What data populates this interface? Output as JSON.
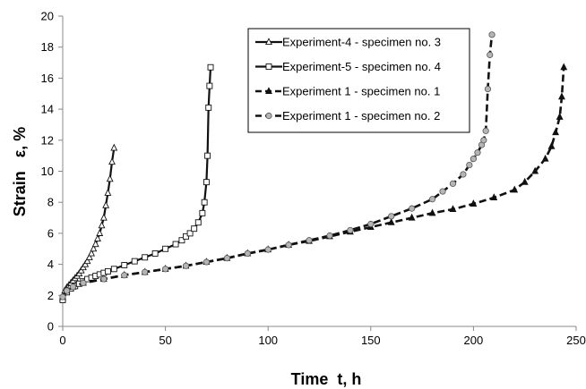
{
  "chart_data": {
    "type": "line",
    "title": "",
    "xlabel": "Time  t, h",
    "ylabel": "Strain   ε, %",
    "xlim": [
      0,
      250
    ],
    "ylim": [
      0,
      20
    ],
    "xticks": [
      0,
      50,
      100,
      150,
      200,
      250
    ],
    "yticks": [
      0,
      2,
      4,
      6,
      8,
      10,
      12,
      14,
      16,
      18,
      20
    ],
    "grid": false,
    "legend_position": "top-right",
    "series": [
      {
        "name": "Experiment-4 - specimen no. 3",
        "line_style": "solid",
        "marker": "triangle-open",
        "x": [
          0,
          1,
          2,
          3,
          4,
          5,
          6,
          7,
          8,
          9,
          10,
          11,
          12,
          13,
          14,
          15,
          16,
          17,
          18,
          19,
          20,
          21,
          22,
          23,
          24,
          25
        ],
        "y": [
          1.8,
          2.3,
          2.5,
          2.65,
          2.8,
          2.95,
          3.1,
          3.25,
          3.4,
          3.6,
          3.8,
          4.0,
          4.2,
          4.45,
          4.7,
          5.0,
          5.3,
          5.65,
          6.0,
          6.5,
          7.0,
          7.8,
          8.6,
          9.5,
          10.6,
          11.5
        ]
      },
      {
        "name": "Experiment-5 - specimen no. 4",
        "line_style": "solid",
        "marker": "square-open",
        "x": [
          0,
          2,
          4,
          6,
          8,
          10,
          12,
          14,
          16,
          18,
          20,
          22,
          25,
          30,
          35,
          40,
          45,
          50,
          55,
          58,
          60,
          62,
          64,
          66,
          68,
          69,
          70,
          70.5,
          71,
          71.5,
          72
        ],
        "y": [
          1.7,
          2.2,
          2.45,
          2.6,
          2.75,
          2.9,
          3.05,
          3.15,
          3.25,
          3.35,
          3.45,
          3.55,
          3.7,
          3.95,
          4.2,
          4.45,
          4.7,
          5.0,
          5.3,
          5.55,
          5.8,
          6.0,
          6.3,
          6.7,
          7.3,
          8.0,
          9.3,
          11.0,
          14.1,
          15.5,
          16.7
        ]
      },
      {
        "name": "Experiment 1 - specimen no. 1",
        "line_style": "dashed",
        "marker": "triangle-filled",
        "x": [
          0,
          2,
          5,
          10,
          20,
          30,
          40,
          50,
          60,
          70,
          80,
          90,
          100,
          110,
          120,
          130,
          140,
          150,
          160,
          170,
          180,
          190,
          200,
          210,
          220,
          225,
          230,
          235,
          238,
          240,
          242,
          243,
          244
        ],
        "y": [
          1.9,
          2.3,
          2.55,
          2.8,
          3.05,
          3.3,
          3.5,
          3.7,
          3.9,
          4.15,
          4.4,
          4.7,
          4.95,
          5.25,
          5.5,
          5.8,
          6.1,
          6.4,
          6.7,
          7.0,
          7.3,
          7.55,
          7.9,
          8.3,
          8.8,
          9.3,
          10.0,
          10.8,
          11.6,
          12.5,
          13.5,
          14.8,
          16.7
        ]
      },
      {
        "name": "Experiment 1 - specimen no. 2",
        "line_style": "dashed",
        "marker": "circle-filled",
        "x": [
          0,
          2,
          5,
          10,
          20,
          30,
          40,
          50,
          60,
          70,
          80,
          90,
          100,
          110,
          120,
          130,
          140,
          150,
          160,
          170,
          180,
          185,
          190,
          195,
          198,
          200,
          202,
          204,
          205,
          206,
          207,
          208,
          209
        ],
        "y": [
          1.9,
          2.3,
          2.55,
          2.8,
          3.05,
          3.3,
          3.5,
          3.7,
          3.9,
          4.15,
          4.4,
          4.7,
          4.95,
          5.25,
          5.55,
          5.85,
          6.2,
          6.6,
          7.1,
          7.6,
          8.2,
          8.7,
          9.2,
          9.8,
          10.4,
          10.8,
          11.2,
          11.7,
          12.0,
          12.6,
          15.3,
          17.5,
          18.8
        ]
      }
    ]
  }
}
